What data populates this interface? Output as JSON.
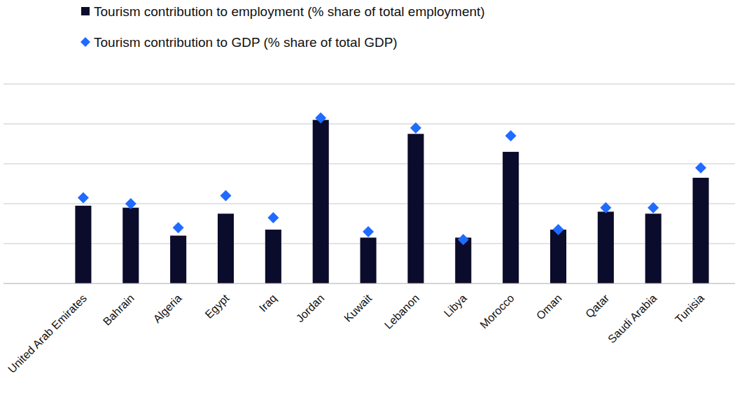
{
  "chart_data": {
    "type": "bar",
    "categories": [
      "United Arab Emirates",
      "Bahrain",
      "Algeria",
      "Egypt",
      "Iraq",
      "Jordan",
      "Kuwait",
      "Lebanon",
      "Libya",
      "Morocco",
      "Oman",
      "Qatar",
      "Saudi Arabia",
      "Tunisia"
    ],
    "series": [
      {
        "name": "Tourism contribution to employment (% share of total employment)",
        "type": "bar",
        "color": "#0b0b2b",
        "values": [
          3.9,
          3.8,
          2.4,
          3.5,
          2.7,
          8.2,
          2.3,
          7.5,
          2.3,
          6.6,
          2.7,
          3.6,
          3.5,
          5.3
        ]
      },
      {
        "name": "Tourism contribution to GDP (% share of total GDP)",
        "type": "scatter",
        "color": "#1f6bff",
        "marker": "diamond",
        "values": [
          4.3,
          4.0,
          2.8,
          4.4,
          3.3,
          8.3,
          2.6,
          7.8,
          2.2,
          7.4,
          2.7,
          3.8,
          3.8,
          5.8
        ]
      }
    ],
    "ylim": [
      0,
      10
    ],
    "yticks": [
      0,
      2,
      4,
      6,
      8,
      10
    ],
    "grid": true,
    "legend": "top-left",
    "tick_labels": "x"
  }
}
